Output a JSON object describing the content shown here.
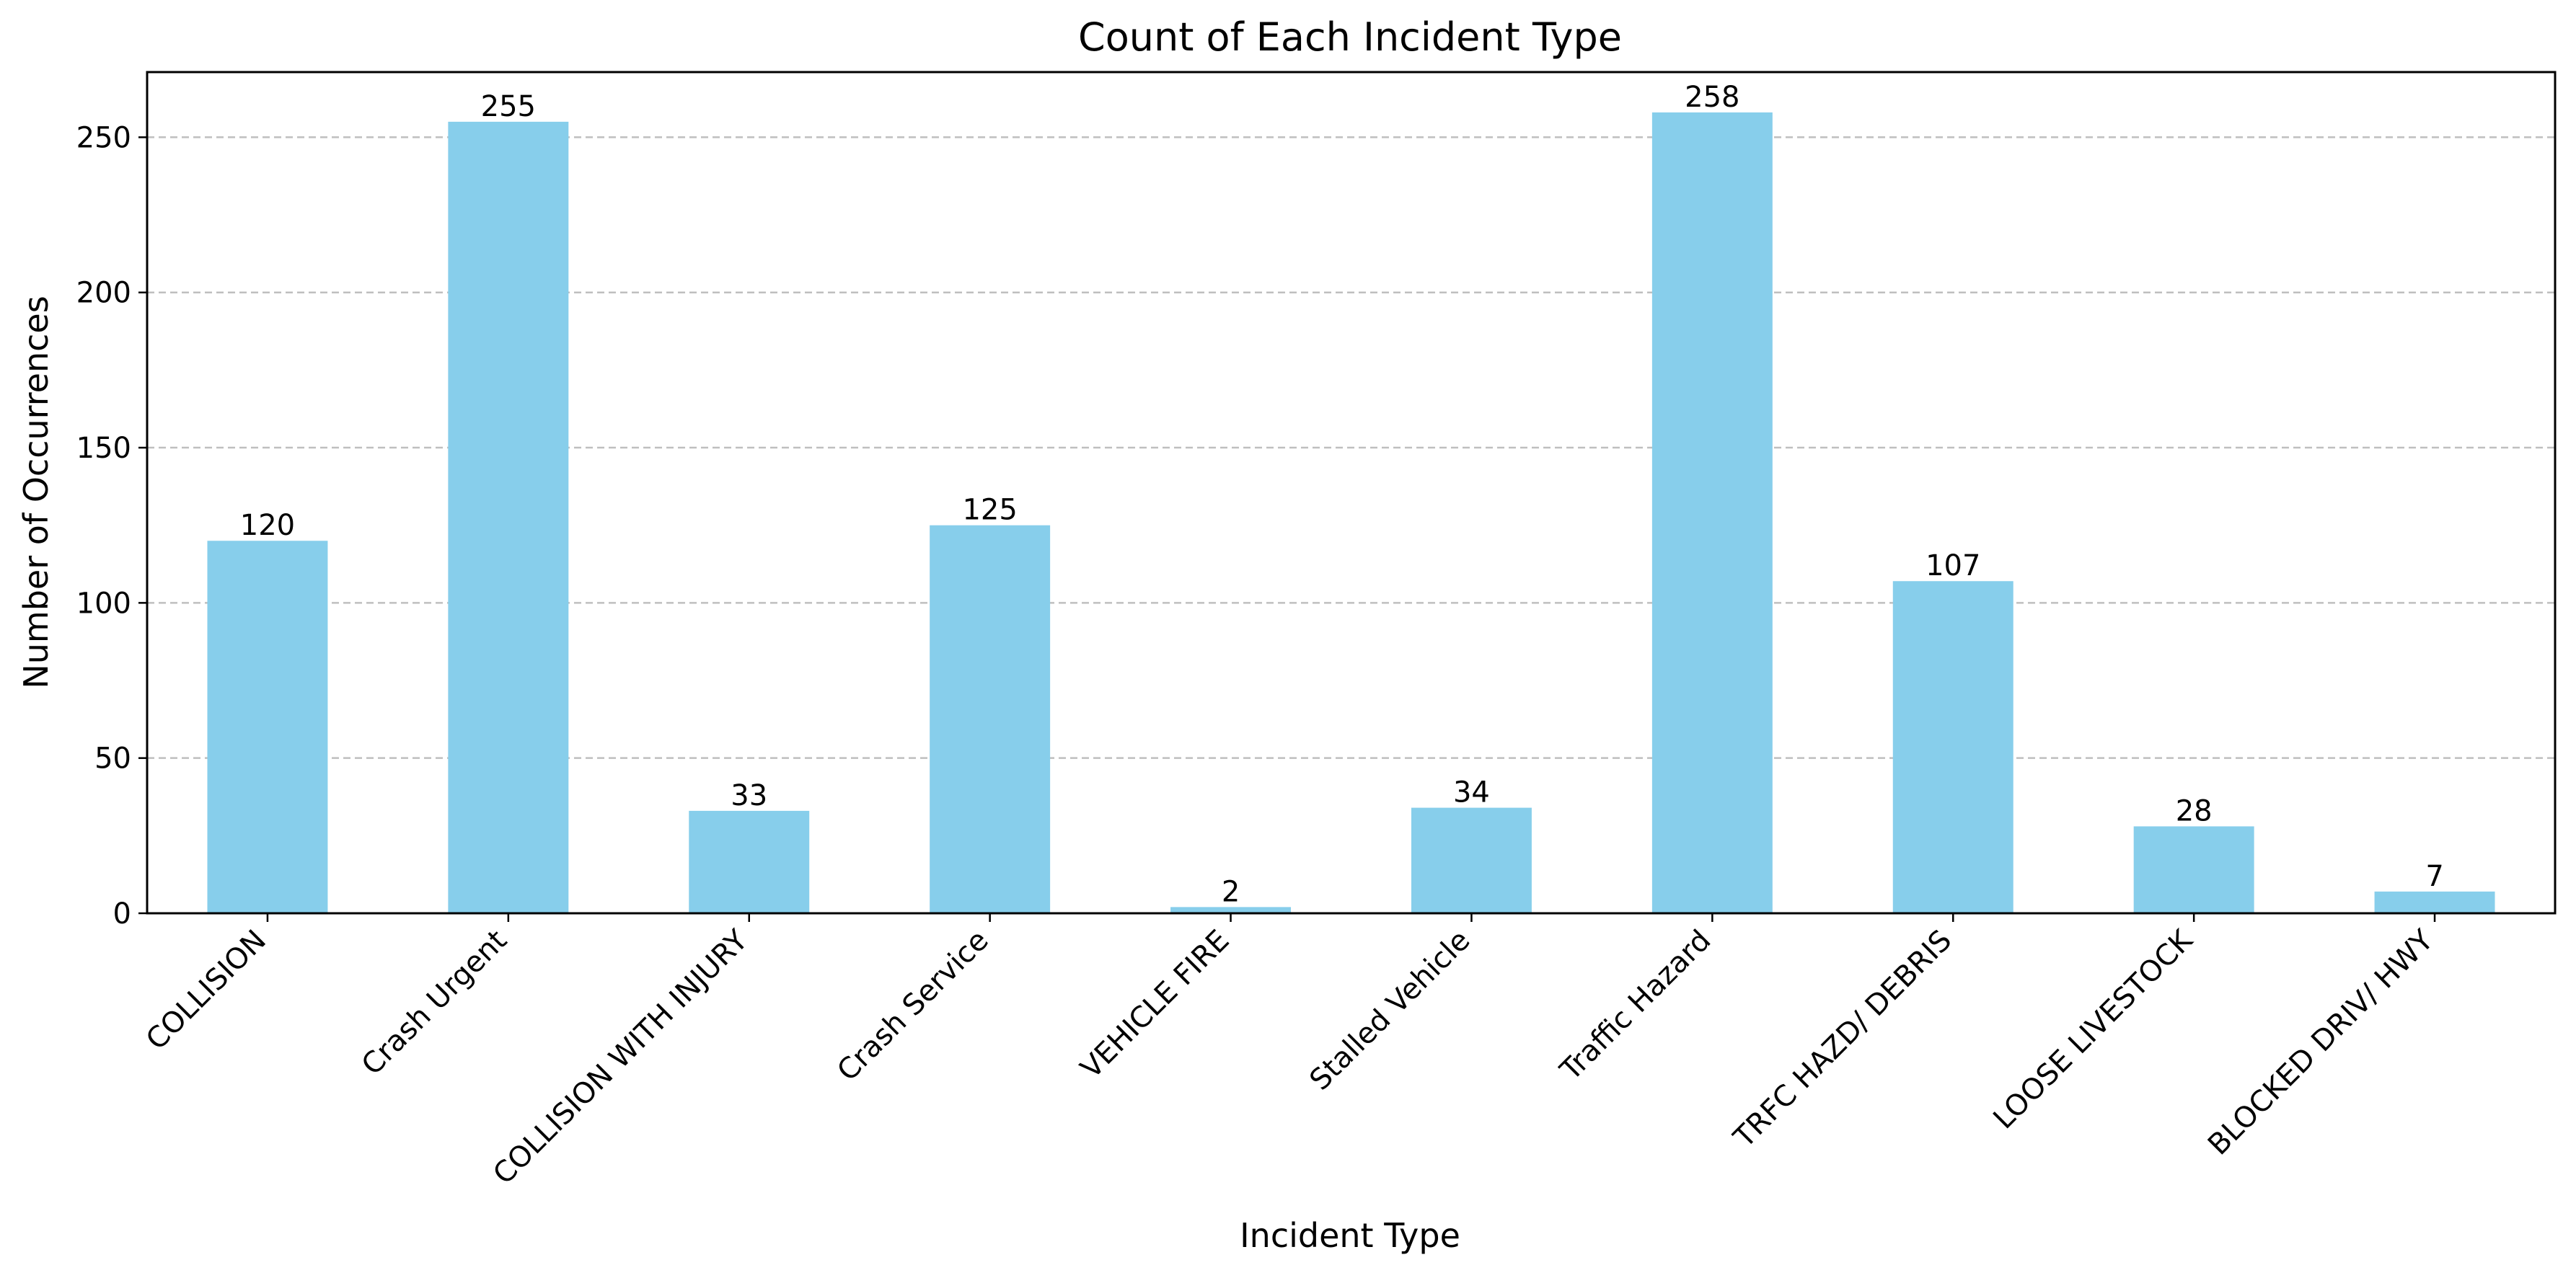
{
  "chart_data": {
    "type": "bar",
    "title": "Count of Each Incident Type",
    "xlabel": "Incident Type",
    "ylabel": "Number of Occurrences",
    "categories": [
      "COLLISION",
      "Crash Urgent",
      "COLLISION WITH INJURY",
      "Crash Service",
      "VEHICLE FIRE",
      "Stalled Vehicle",
      "Traffic Hazard",
      "TRFC HAZD/ DEBRIS",
      "LOOSE LIVESTOCK",
      "BLOCKED DRIV/ HWY"
    ],
    "values": [
      120,
      255,
      33,
      125,
      2,
      34,
      258,
      107,
      28,
      7
    ],
    "ylim": [
      0,
      271
    ],
    "yticks": [
      0,
      50,
      100,
      150,
      200,
      250
    ],
    "grid": "y-dashed",
    "bar_color": "#87CEEB",
    "data_labels": true
  }
}
